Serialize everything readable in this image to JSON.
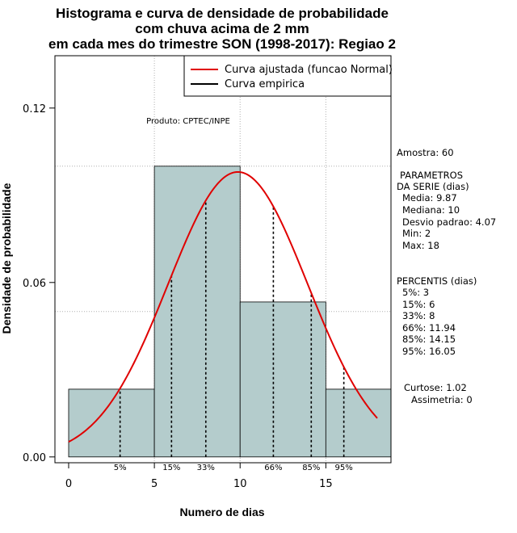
{
  "chart_data": {
    "type": "histogram",
    "title_lines": [
      "Histograma e curva de densidade de probabilidade",
      "com chuva acima de 2 mm",
      "em cada mes do trimestre SON (1998-2017): Regiao 2"
    ],
    "xlabel": "Numero de dias",
    "ylabel": "Densidade de probabilidade",
    "xlim": [
      -0.8,
      18.8
    ],
    "ylim": [
      -0.002,
      0.138
    ],
    "x_ticks": [
      0,
      5,
      10,
      15
    ],
    "y_ticks": [
      0.0,
      0.06,
      0.12
    ],
    "y_tick_labels": [
      "0.00",
      "0.06",
      "0.12"
    ],
    "grid": true,
    "grid_lines": {
      "x": [
        5,
        10,
        15
      ],
      "y": [
        0.05,
        0.1
      ]
    },
    "bins": [
      {
        "x0": 0,
        "x1": 5,
        "density": 0.0233
      },
      {
        "x0": 5,
        "x1": 10,
        "density": 0.1
      },
      {
        "x0": 10,
        "x1": 15,
        "density": 0.0533
      },
      {
        "x0": 15,
        "x1": 19,
        "density": 0.0233
      }
    ],
    "normal_fit": {
      "mean": 9.87,
      "sd": 4.07,
      "x_range": [
        0,
        18
      ]
    },
    "percentiles": [
      {
        "label": "5%",
        "value": 3
      },
      {
        "label": "15%",
        "value": 6
      },
      {
        "label": "33%",
        "value": 8
      },
      {
        "label": "66%",
        "value": 11.94
      },
      {
        "label": "85%",
        "value": 14.15
      },
      {
        "label": "95%",
        "value": 16.05
      }
    ],
    "legend": {
      "position": "top-right",
      "entries": [
        {
          "label": "Curva ajustada (funcao Normal)",
          "color": "#e00000"
        },
        {
          "label": "Curva empirica",
          "color": "#000000"
        }
      ]
    },
    "annotation": "Produto: CPTEC/INPE",
    "colors": {
      "bar_fill": "#b4cccc",
      "curve": "#e00000",
      "grid": "#b0b0b0"
    }
  },
  "side_panel": {
    "amostra": "Amostra: 60",
    "parametros_title": "PARAMETROS",
    "parametros_subtitle": "DA SERIE (dias)",
    "media": "Media: 9.87",
    "mediana": "Mediana: 10",
    "desvio": "Desvio padrao: 4.07",
    "min": "Min: 2",
    "max": "Max: 18",
    "percentis_title": "PERCENTIS (dias)",
    "p5": "5%: 3",
    "p15": "15%: 6",
    "p33": "33%: 8",
    "p66": "66%: 11.94",
    "p85": "85%: 14.15",
    "p95": "95%: 16.05",
    "curtose": "Curtose: 1.02",
    "assimetria": "Assimetria: 0"
  }
}
